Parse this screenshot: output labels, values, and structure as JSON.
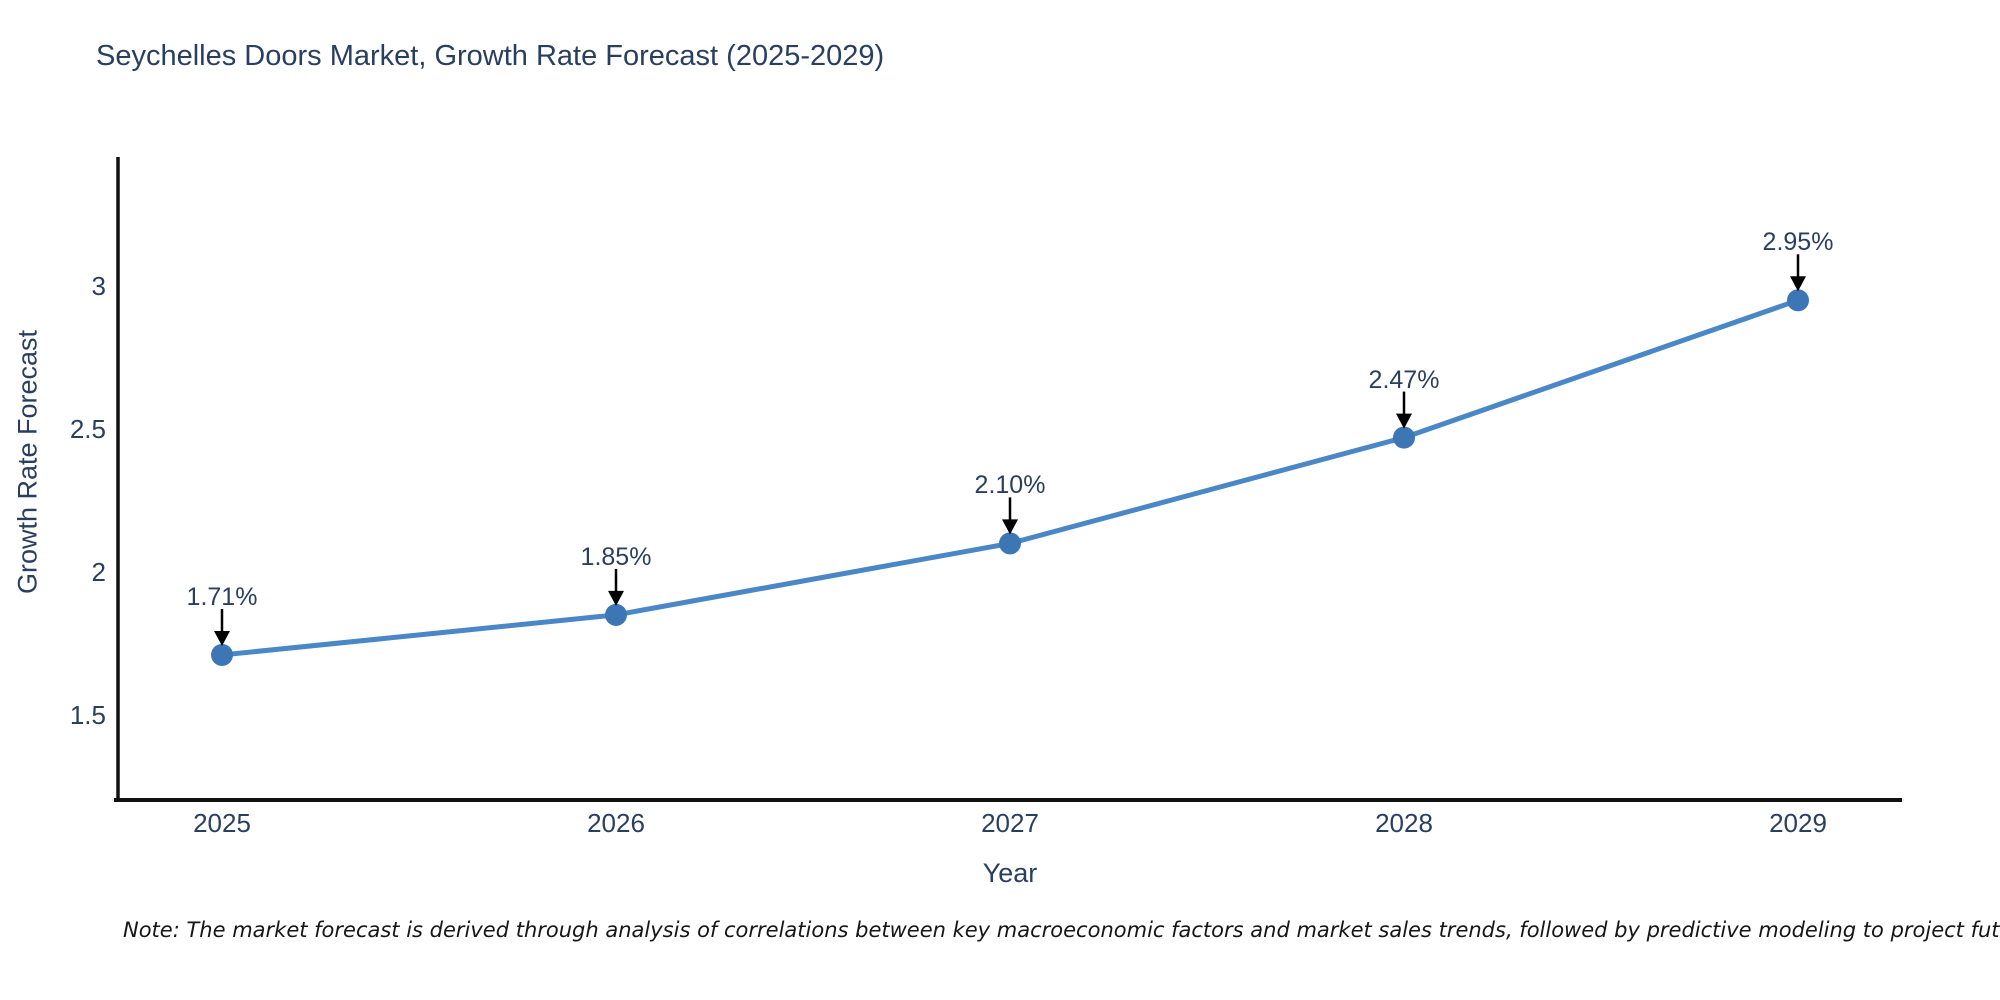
{
  "chart_data": {
    "type": "line",
    "title": "Seychelles Doors Market, Growth Rate Forecast (2025-2029)",
    "xlabel": "Year",
    "ylabel": "Growth Rate Forecast",
    "x": [
      2025,
      2026,
      2027,
      2028,
      2029
    ],
    "xtick_labels": [
      "2025",
      "2026",
      "2027",
      "2028",
      "2029"
    ],
    "series": [
      {
        "name": "Growth Rate Forecast",
        "values": [
          1.71,
          1.85,
          2.1,
          2.47,
          2.95
        ]
      }
    ],
    "point_labels": [
      "1.71%",
      "1.85%",
      "2.10%",
      "2.47%",
      "2.95%"
    ],
    "yticks": [
      1.5,
      2,
      2.5,
      3
    ],
    "ytick_labels": [
      "1.5",
      "2",
      "2.5",
      "3"
    ],
    "ylim": [
      1.2,
      3.45
    ],
    "grid": false,
    "legend_position": "none",
    "line_color": "#4a87c6",
    "marker_color": "#3d76b4",
    "annotation_arrow_color": "#000000",
    "axis_line_color": "#111111",
    "text_color": "#2a3f5f"
  },
  "note": {
    "text": "Note: The market forecast is derived through analysis of correlations between key macroeconomic factors and market sales trends, followed by predictive modeling to project future sales"
  }
}
